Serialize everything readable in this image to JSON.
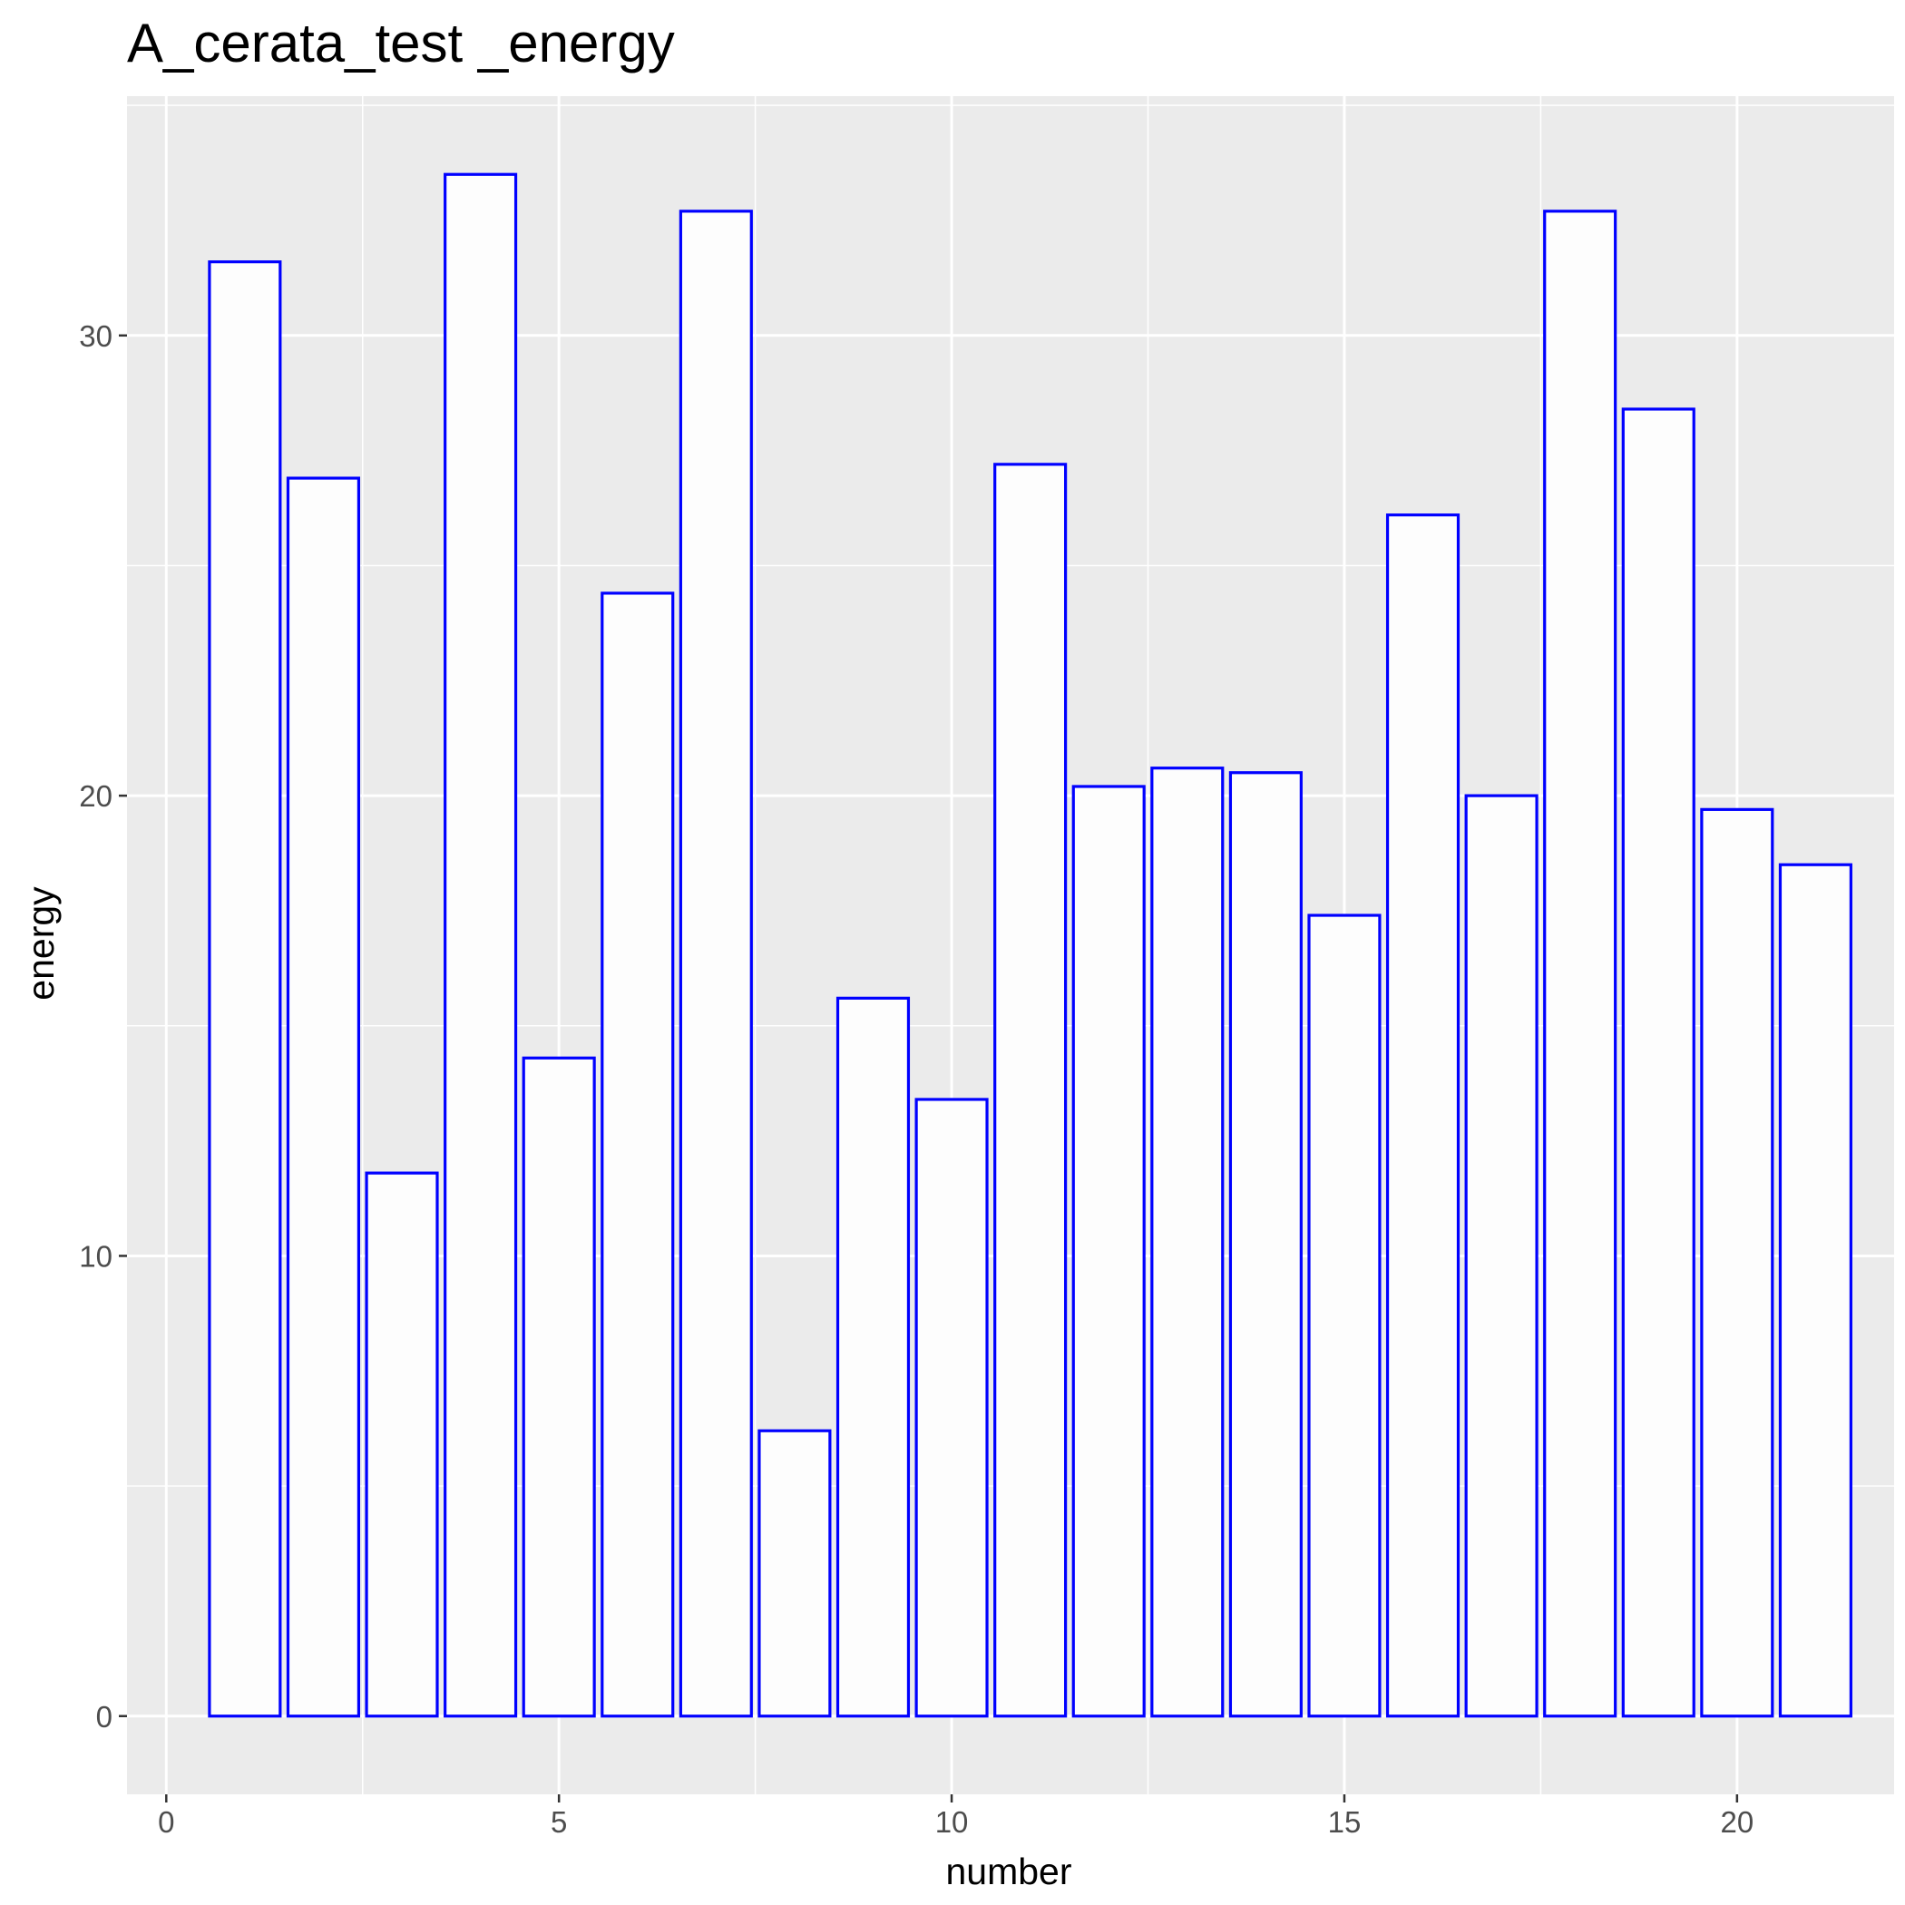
{
  "chart_data": {
    "type": "bar",
    "title": "A_cerata_test _energy",
    "xlabel": "number",
    "ylabel": "energy",
    "x": [
      1,
      2,
      3,
      4,
      5,
      6,
      7,
      8,
      9,
      10,
      11,
      12,
      13,
      14,
      15,
      16,
      17,
      18,
      19,
      20,
      21
    ],
    "values": [
      31.6,
      26.9,
      11.8,
      33.5,
      14.3,
      24.4,
      32.7,
      6.2,
      15.6,
      13.4,
      27.2,
      20.2,
      20.6,
      20.5,
      17.4,
      26.1,
      20.0,
      32.7,
      28.4,
      19.7,
      18.5
    ],
    "xlim": [
      -0.5,
      22.0
    ],
    "ylim": [
      -1.7,
      35.2
    ],
    "x_ticks": [
      0,
      5,
      10,
      15,
      20
    ],
    "x_tick_labels": [
      "0",
      "5",
      "10",
      "15",
      "20"
    ],
    "y_ticks": [
      0,
      10,
      20,
      30
    ],
    "y_tick_labels": [
      "0",
      "10",
      "20",
      "30"
    ],
    "grid": true,
    "panel_background": "#ebebeb",
    "grid_color": "#ffffff",
    "bar_fill": "#fdfdfd",
    "bar_outline": "#0000ff"
  }
}
